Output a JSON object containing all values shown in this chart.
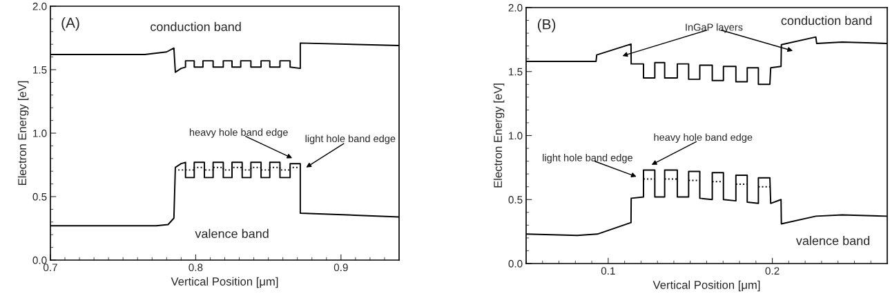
{
  "chart_data": [
    {
      "type": "line",
      "xlabel": "Vertical Position [μm]",
      "ylabel": "Electron Energy [eV]",
      "xlim": [
        0.7,
        0.94
      ],
      "ylim": [
        0,
        2.0
      ],
      "xticks": [
        {
          "value": 0.7,
          "label": "0.7"
        },
        {
          "value": 0.71,
          "label": null
        },
        {
          "value": 0.72,
          "label": null
        },
        {
          "value": 0.73,
          "label": null
        },
        {
          "value": 0.74,
          "label": null
        },
        {
          "value": 0.75,
          "label": null
        },
        {
          "value": 0.76,
          "label": null
        },
        {
          "value": 0.77,
          "label": null
        },
        {
          "value": 0.78,
          "label": null
        },
        {
          "value": 0.79,
          "label": null
        },
        {
          "value": 0.8,
          "label": "0.8"
        },
        {
          "value": 0.81,
          "label": null
        },
        {
          "value": 0.82,
          "label": null
        },
        {
          "value": 0.83,
          "label": null
        },
        {
          "value": 0.84,
          "label": null
        },
        {
          "value": 0.85,
          "label": null
        },
        {
          "value": 0.86,
          "label": null
        },
        {
          "value": 0.87,
          "label": null
        },
        {
          "value": 0.88,
          "label": null
        },
        {
          "value": 0.89,
          "label": null
        },
        {
          "value": 0.9,
          "label": "0.9"
        },
        {
          "value": 0.91,
          "label": null
        },
        {
          "value": 0.92,
          "label": null
        },
        {
          "value": 0.93,
          "label": null
        }
      ],
      "yticks": [
        {
          "value": 0,
          "label": "0.0"
        },
        {
          "value": 0.1,
          "label": null
        },
        {
          "value": 0.2,
          "label": null
        },
        {
          "value": 0.3,
          "label": null
        },
        {
          "value": 0.4,
          "label": null
        },
        {
          "value": 0.5,
          "label": "0.5"
        },
        {
          "value": 0.6,
          "label": null
        },
        {
          "value": 0.7,
          "label": null
        },
        {
          "value": 0.8,
          "label": null
        },
        {
          "value": 0.9,
          "label": null
        },
        {
          "value": 1.0,
          "label": "1.0"
        },
        {
          "value": 1.1,
          "label": null
        },
        {
          "value": 1.2,
          "label": null
        },
        {
          "value": 1.3,
          "label": null
        },
        {
          "value": 1.4,
          "label": null
        },
        {
          "value": 1.5,
          "label": "1.5"
        },
        {
          "value": 1.6,
          "label": null
        },
        {
          "value": 1.7,
          "label": null
        },
        {
          "value": 1.8,
          "label": null
        },
        {
          "value": 1.9,
          "label": null
        },
        {
          "value": 2.0,
          "label": "2.0"
        }
      ],
      "grid": false,
      "legend": false,
      "series": [
        {
          "color": "#000000",
          "line_style": "solid",
          "x": [
            0.7,
            0.765,
            0.78,
            0.785,
            0.786,
            0.79,
            0.793,
            0.793,
            0.799,
            0.799,
            0.805,
            0.805,
            0.812,
            0.812,
            0.819,
            0.819,
            0.825,
            0.825,
            0.831,
            0.831,
            0.838,
            0.838,
            0.845,
            0.845,
            0.851,
            0.851,
            0.858,
            0.858,
            0.865,
            0.865,
            0.872,
            0.872,
            0.94
          ],
          "values": [
            1.62,
            1.62,
            1.64,
            1.67,
            1.48,
            1.51,
            1.52,
            1.57,
            1.57,
            1.52,
            1.52,
            1.57,
            1.57,
            1.52,
            1.52,
            1.57,
            1.57,
            1.52,
            1.52,
            1.57,
            1.57,
            1.52,
            1.52,
            1.57,
            1.57,
            1.52,
            1.52,
            1.57,
            1.57,
            1.52,
            1.51,
            1.71,
            1.69
          ]
        },
        {
          "color": "#000000",
          "line_style": "solid",
          "x": [
            0.7,
            0.773,
            0.781,
            0.785,
            0.786,
            0.79,
            0.793,
            0.793,
            0.799,
            0.799,
            0.806,
            0.806,
            0.812,
            0.812,
            0.819,
            0.819,
            0.825,
            0.825,
            0.832,
            0.832,
            0.838,
            0.838,
            0.845,
            0.845,
            0.851,
            0.851,
            0.858,
            0.858,
            0.865,
            0.865,
            0.872,
            0.872,
            0.94
          ],
          "values": [
            0.27,
            0.27,
            0.28,
            0.33,
            0.73,
            0.76,
            0.77,
            0.65,
            0.65,
            0.77,
            0.77,
            0.65,
            0.65,
            0.77,
            0.77,
            0.65,
            0.65,
            0.77,
            0.77,
            0.65,
            0.65,
            0.77,
            0.77,
            0.65,
            0.65,
            0.77,
            0.77,
            0.65,
            0.65,
            0.76,
            0.76,
            0.37,
            0.34
          ]
        },
        {
          "color": "#000000",
          "line_style": "dotted",
          "x": [
            0.788,
            0.793,
            0.793,
            0.799,
            0.799,
            0.806,
            0.806,
            0.812,
            0.812,
            0.819,
            0.819,
            0.825,
            0.825,
            0.832,
            0.832,
            0.838,
            0.838,
            0.845,
            0.845,
            0.851,
            0.851,
            0.858,
            0.858,
            0.865,
            0.865,
            0.871
          ],
          "values": [
            0.71,
            0.71,
            0.71,
            0.71,
            0.73,
            0.73,
            0.71,
            0.71,
            0.73,
            0.73,
            0.71,
            0.71,
            0.73,
            0.73,
            0.71,
            0.71,
            0.73,
            0.73,
            0.71,
            0.71,
            0.73,
            0.73,
            0.71,
            0.71,
            0.73,
            0.73
          ]
        }
      ],
      "annotations": [
        "(A)",
        "conduction band",
        "heavy hole band edge",
        "light hole band edge",
        "valence band"
      ]
    },
    {
      "type": "line",
      "xlabel": "Vertical Position [μm]",
      "ylabel": "Electron Energy [eV]",
      "xlim": [
        0.05,
        0.27
      ],
      "ylim": [
        0,
        2.0
      ],
      "xticks": [
        {
          "value": 0.05,
          "label": null
        },
        {
          "value": 0.06,
          "label": null
        },
        {
          "value": 0.07,
          "label": null
        },
        {
          "value": 0.08,
          "label": null
        },
        {
          "value": 0.09,
          "label": null
        },
        {
          "value": 0.1,
          "label": "0.1"
        },
        {
          "value": 0.11,
          "label": null
        },
        {
          "value": 0.12,
          "label": null
        },
        {
          "value": 0.13,
          "label": null
        },
        {
          "value": 0.14,
          "label": null
        },
        {
          "value": 0.15,
          "label": null
        },
        {
          "value": 0.16,
          "label": null
        },
        {
          "value": 0.17,
          "label": null
        },
        {
          "value": 0.18,
          "label": null
        },
        {
          "value": 0.19,
          "label": null
        },
        {
          "value": 0.2,
          "label": "0.2"
        },
        {
          "value": 0.21,
          "label": null
        },
        {
          "value": 0.22,
          "label": null
        },
        {
          "value": 0.23,
          "label": null
        },
        {
          "value": 0.24,
          "label": null
        },
        {
          "value": 0.25,
          "label": null
        },
        {
          "value": 0.26,
          "label": null
        }
      ],
      "yticks": [
        {
          "value": 0,
          "label": "0.0"
        },
        {
          "value": 0.1,
          "label": null
        },
        {
          "value": 0.2,
          "label": null
        },
        {
          "value": 0.3,
          "label": null
        },
        {
          "value": 0.4,
          "label": null
        },
        {
          "value": 0.5,
          "label": "0.5"
        },
        {
          "value": 0.6,
          "label": null
        },
        {
          "value": 0.7,
          "label": null
        },
        {
          "value": 0.8,
          "label": null
        },
        {
          "value": 0.9,
          "label": null
        },
        {
          "value": 1.0,
          "label": "1.0"
        },
        {
          "value": 1.1,
          "label": null
        },
        {
          "value": 1.2,
          "label": null
        },
        {
          "value": 1.3,
          "label": null
        },
        {
          "value": 1.4,
          "label": null
        },
        {
          "value": 1.5,
          "label": "1.5"
        },
        {
          "value": 1.6,
          "label": null
        },
        {
          "value": 1.7,
          "label": null
        },
        {
          "value": 1.8,
          "label": null
        },
        {
          "value": 1.9,
          "label": null
        },
        {
          "value": 2.0,
          "label": "2.0"
        }
      ],
      "grid": false,
      "legend": false,
      "series": [
        {
          "color": "#000000",
          "line_style": "solid",
          "x": [
            0.05,
            0.0926,
            0.093,
            0.1139,
            0.114,
            0.12,
            0.1215,
            0.1215,
            0.1284,
            0.1284,
            0.1344,
            0.1344,
            0.1421,
            0.1421,
            0.149,
            0.149,
            0.1558,
            0.1558,
            0.1634,
            0.1634,
            0.1702,
            0.1702,
            0.1778,
            0.1778,
            0.1847,
            0.1847,
            0.1915,
            0.1915,
            0.1985,
            0.199,
            0.2053,
            0.2055,
            0.2265,
            0.227,
            0.2425,
            0.27
          ],
          "values": [
            1.58,
            1.58,
            1.63,
            1.715,
            1.56,
            1.56,
            1.56,
            1.45,
            1.45,
            1.57,
            1.57,
            1.45,
            1.45,
            1.56,
            1.56,
            1.44,
            1.44,
            1.55,
            1.55,
            1.43,
            1.43,
            1.54,
            1.54,
            1.42,
            1.42,
            1.53,
            1.53,
            1.4,
            1.4,
            1.53,
            1.54,
            1.71,
            1.77,
            1.72,
            1.73,
            1.72
          ]
        },
        {
          "color": "#000000",
          "line_style": "solid",
          "x": [
            0.05,
            0.0812,
            0.0934,
            0.1139,
            0.114,
            0.1215,
            0.1215,
            0.1284,
            0.1284,
            0.1344,
            0.1344,
            0.1421,
            0.1421,
            0.149,
            0.149,
            0.1558,
            0.1558,
            0.1634,
            0.1634,
            0.1702,
            0.1702,
            0.1778,
            0.1778,
            0.1847,
            0.1847,
            0.1915,
            0.1915,
            0.1985,
            0.199,
            0.2053,
            0.2055,
            0.2265,
            0.2425,
            0.27
          ],
          "values": [
            0.23,
            0.22,
            0.23,
            0.32,
            0.51,
            0.52,
            0.73,
            0.73,
            0.52,
            0.52,
            0.73,
            0.73,
            0.52,
            0.52,
            0.72,
            0.72,
            0.51,
            0.5,
            0.71,
            0.71,
            0.5,
            0.49,
            0.69,
            0.69,
            0.48,
            0.47,
            0.67,
            0.67,
            0.47,
            0.5,
            0.31,
            0.37,
            0.38,
            0.37
          ]
        },
        {
          "color": "#000000",
          "line_style": "dotted",
          "x": [
            0.1215,
            0.1284,
            null,
            0.1344,
            0.1421,
            null,
            0.149,
            0.1558,
            null,
            0.1634,
            0.1702,
            null,
            0.1778,
            0.1847,
            null,
            0.1915,
            0.1985
          ],
          "values": [
            0.66,
            0.66,
            null,
            0.66,
            0.66,
            null,
            0.65,
            0.65,
            null,
            0.64,
            0.64,
            null,
            0.62,
            0.62,
            null,
            0.6,
            0.6
          ]
        }
      ],
      "annotations": [
        "(B)",
        "InGaP layers",
        "conduction band",
        "heavy hole band edge",
        "light hole band edge",
        "valence band"
      ]
    }
  ]
}
